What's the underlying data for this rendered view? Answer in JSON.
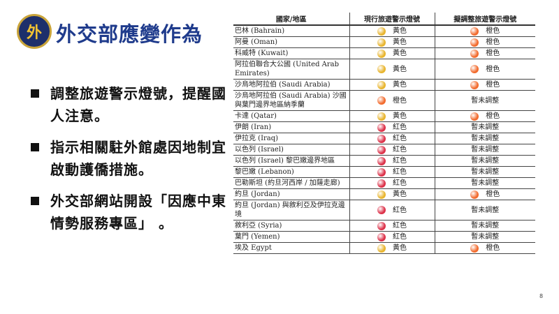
{
  "header": {
    "title": "外交部應變作為",
    "logo_text": "外"
  },
  "bullets": [
    "調整旅遊警示燈號，提醒國人注意。",
    "指示相關駐外館處因地制宜啟動護僑措施。",
    "外交部網站開設「因應中東情勢服務專區」 。"
  ],
  "colors": {
    "yellow": "#e8b42c",
    "orange": "#f26a2c",
    "red": "#dc3048"
  },
  "table": {
    "headers": [
      "國家/地區",
      "現行旅遊警示燈號",
      "擬調整旅遊警示燈號"
    ],
    "rows": [
      {
        "country": "巴林 (Bahrain)",
        "current": "黃色",
        "current_color": "yellow",
        "proposed": "橙色",
        "proposed_color": "orange"
      },
      {
        "country": "阿曼 (Oman)",
        "current": "黃色",
        "current_color": "yellow",
        "proposed": "橙色",
        "proposed_color": "orange"
      },
      {
        "country": "科威特 (Kuwait)",
        "current": "黃色",
        "current_color": "yellow",
        "proposed": "橙色",
        "proposed_color": "orange"
      },
      {
        "country": "阿拉伯聯合大公國 (United Arab Emirates)",
        "current": "黃色",
        "current_color": "yellow",
        "proposed": "橙色",
        "proposed_color": "orange"
      },
      {
        "country": "沙烏地阿拉伯 (Saudi Arabia)",
        "current": "黃色",
        "current_color": "yellow",
        "proposed": "橙色",
        "proposed_color": "orange"
      },
      {
        "country": "沙烏地阿拉伯 (Saudi Arabia) 沙國與葉門邊界地區納季蘭",
        "current": "橙色",
        "current_color": "orange",
        "proposed": "暫未調整",
        "proposed_color": ""
      },
      {
        "country": "卡達 (Qatar)",
        "current": "黃色",
        "current_color": "yellow",
        "proposed": "橙色",
        "proposed_color": "orange"
      },
      {
        "country": "伊朗 (Iran)",
        "current": "紅色",
        "current_color": "red",
        "proposed": "暫未調整",
        "proposed_color": ""
      },
      {
        "country": "伊拉克 (Iraq)",
        "current": "紅色",
        "current_color": "red",
        "proposed": "暫未調整",
        "proposed_color": ""
      },
      {
        "country": "以色列 (Israel)",
        "current": "紅色",
        "current_color": "red",
        "proposed": "暫未調整",
        "proposed_color": ""
      },
      {
        "country": "以色列 (Israel) 黎巴嫩邊界地區",
        "current": "紅色",
        "current_color": "red",
        "proposed": "暫未調整",
        "proposed_color": ""
      },
      {
        "country": "黎巴嫩 (Lebanon)",
        "current": "紅色",
        "current_color": "red",
        "proposed": "暫未調整",
        "proposed_color": ""
      },
      {
        "country": "巴勒斯坦 (約旦河西岸 / 加薩走廊)",
        "current": "紅色",
        "current_color": "red",
        "proposed": "暫未調整",
        "proposed_color": ""
      },
      {
        "country": "約旦 (Jordan)",
        "current": "黃色",
        "current_color": "yellow",
        "proposed": "橙色",
        "proposed_color": "orange"
      },
      {
        "country": "約旦 (Jordan) 與敘利亞及伊拉克邊境",
        "current": "紅色",
        "current_color": "red",
        "proposed": "暫未調整",
        "proposed_color": ""
      },
      {
        "country": "敘利亞 (Syria)",
        "current": "紅色",
        "current_color": "red",
        "proposed": "暫未調整",
        "proposed_color": ""
      },
      {
        "country": "葉門 (Yemen)",
        "current": "紅色",
        "current_color": "red",
        "proposed": "暫未調整",
        "proposed_color": ""
      },
      {
        "country": "埃及 Egypt",
        "current": "黃色",
        "current_color": "yellow",
        "proposed": "橙色",
        "proposed_color": "orange"
      }
    ]
  },
  "page_number": "8"
}
